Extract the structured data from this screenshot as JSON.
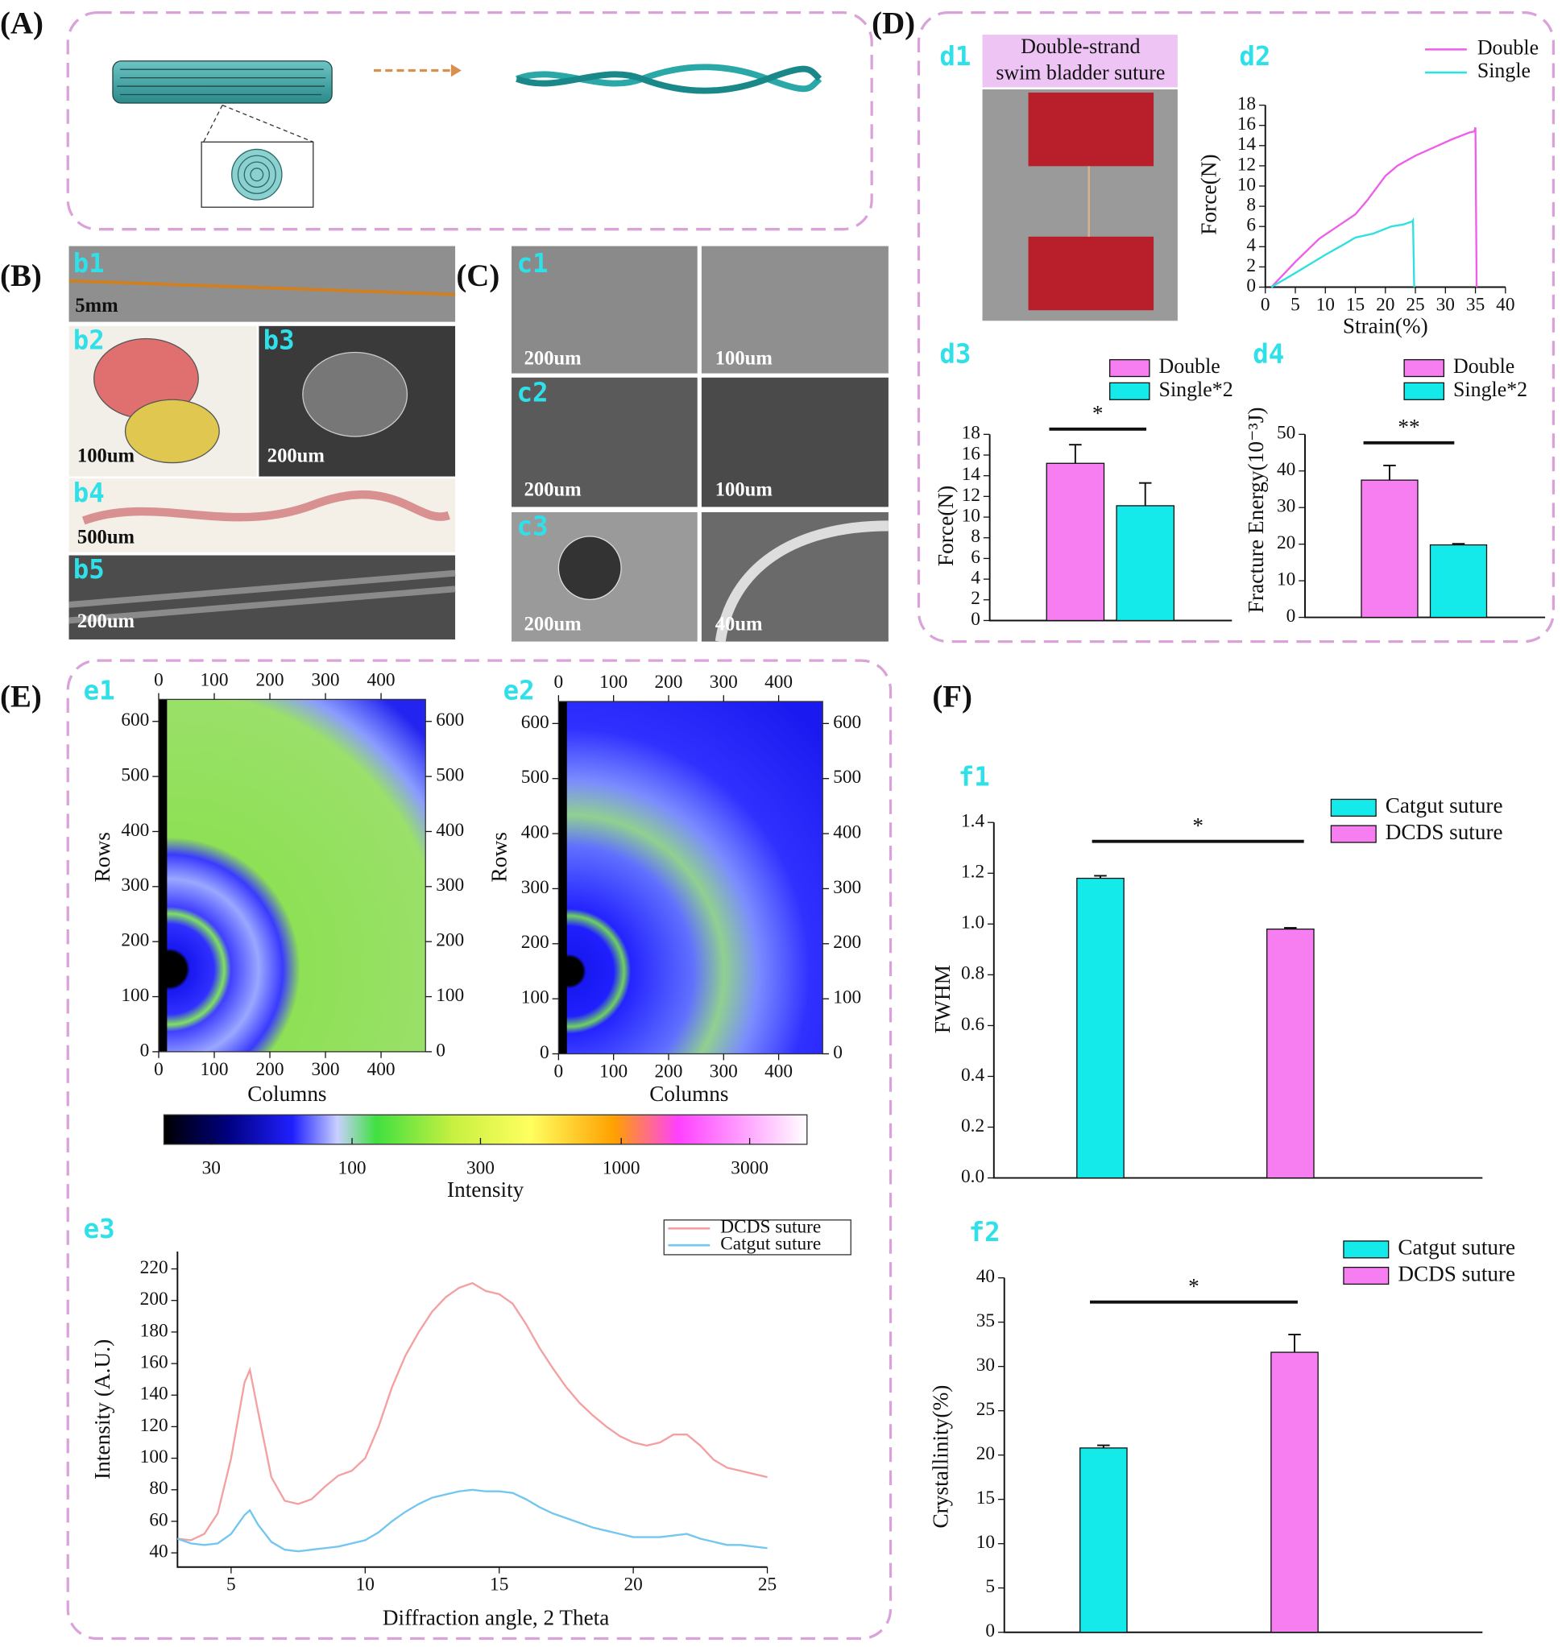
{
  "panels": [
    "(A)",
    "(B)",
    "(C)",
    "(D)",
    "(E)",
    "(F)"
  ],
  "image_labels": [
    "b1",
    "b2",
    "b3",
    "b4",
    "b5",
    "c1",
    "c2",
    "c3",
    "d1"
  ],
  "scale_bars": [
    "5mm",
    "100um",
    "200um",
    "500um",
    "200um",
    "200um",
    "100um",
    "200um",
    "100um",
    "200um",
    "40um"
  ],
  "d1_title": [
    "Double-strand",
    "swim bladder suture"
  ],
  "chart_data": [
    {
      "type": "line",
      "label": "d2",
      "xlabel": "Strain(%)",
      "ylabel": "Force(N)",
      "xlim": [
        0,
        40
      ],
      "xticks": [
        0,
        5,
        10,
        15,
        20,
        25,
        30,
        35,
        40
      ],
      "ylim": [
        0,
        18
      ],
      "yticks": [
        0,
        2,
        4,
        6,
        8,
        10,
        12,
        14,
        16,
        18
      ],
      "series": [
        {
          "name": "Double",
          "color": "#ee5ee8",
          "x": [
            1,
            5,
            9,
            12,
            15,
            17,
            20,
            22,
            25,
            28,
            31,
            34,
            34.8,
            35,
            35.2
          ],
          "values": [
            0,
            2.5,
            4.8,
            6,
            7.2,
            8.6,
            11,
            12,
            13,
            13.8,
            14.6,
            15.3,
            15.4,
            15.8,
            0
          ]
        },
        {
          "name": "Single",
          "color": "#2fe0e0",
          "x": [
            1,
            5,
            10,
            13,
            15,
            18,
            21,
            23,
            24.5,
            24.6,
            24.8
          ],
          "values": [
            0,
            1.4,
            3.2,
            4.2,
            4.9,
            5.3,
            6,
            6.2,
            6.5,
            6.6,
            0
          ]
        }
      ]
    },
    {
      "type": "bar",
      "label": "d3",
      "ylabel": "Force(N)",
      "annotation": "*",
      "ylim": [
        0,
        18
      ],
      "yticks": [
        0,
        2,
        4,
        6,
        8,
        10,
        12,
        14,
        16,
        18
      ],
      "series": [
        {
          "name": "Double",
          "color": "#f77ef0",
          "values": [
            15.2
          ],
          "errors": [
            1.8
          ]
        },
        {
          "name": "Single*2",
          "color": "#14eaea",
          "values": [
            11.1
          ],
          "errors": [
            2.2
          ]
        }
      ]
    },
    {
      "type": "bar",
      "label": "d4",
      "ylabel": "Fracture Energy(10⁻³J)",
      "annotation": "**",
      "ylim": [
        0,
        50
      ],
      "yticks": [
        0,
        10,
        20,
        30,
        40,
        50
      ],
      "series": [
        {
          "name": "Double",
          "color": "#f77ef0",
          "values": [
            37.5
          ],
          "errors": [
            4
          ]
        },
        {
          "name": "Single*2",
          "color": "#14eaea",
          "values": [
            19.8
          ],
          "errors": [
            0.3
          ]
        }
      ]
    },
    {
      "type": "heatmap",
      "label": "e1",
      "xlabel": "Columns",
      "ylabel": "Rows",
      "xlim": [
        0,
        480
      ],
      "xticks": [
        0,
        100,
        200,
        300,
        400
      ],
      "ylim": [
        0,
        640
      ],
      "yticks": [
        0,
        100,
        200,
        300,
        400,
        500,
        600
      ]
    },
    {
      "type": "heatmap",
      "label": "e2",
      "xlabel": "Columns",
      "ylabel": "Rows",
      "xlim": [
        0,
        480
      ],
      "xticks": [
        0,
        100,
        200,
        300,
        400
      ],
      "ylim": [
        0,
        640
      ],
      "yticks": [
        0,
        100,
        200,
        300,
        400,
        500,
        600
      ]
    },
    {
      "type": "colorbar",
      "xlabel": "Intensity",
      "log": true,
      "xlim": [
        20,
        4900
      ],
      "xticks": [
        30,
        100,
        300,
        1000,
        3000
      ]
    },
    {
      "type": "line",
      "label": "e3",
      "xlabel": "Diffraction angle, 2 Theta",
      "ylabel": "Intensity (A.U.)",
      "xlim": [
        3,
        25
      ],
      "xticks": [
        5,
        10,
        15,
        20,
        25
      ],
      "ylim": [
        31,
        231
      ],
      "yticks": [
        40,
        60,
        80,
        100,
        120,
        140,
        160,
        180,
        200,
        220
      ],
      "x": [
        3,
        3.5,
        4,
        4.5,
        5,
        5.5,
        5.7,
        6,
        6.5,
        7,
        7.5,
        8,
        8.5,
        9,
        9.5,
        10,
        10.5,
        11,
        11.5,
        12,
        12.5,
        13,
        13.5,
        14,
        14.5,
        15,
        15.5,
        16,
        16.5,
        17,
        17.5,
        18,
        18.5,
        19,
        19.5,
        20,
        20.5,
        21,
        21.5,
        22,
        22.5,
        23,
        23.5,
        24,
        24.5,
        25
      ],
      "series": [
        {
          "name": "DCDS suture",
          "color": "#f4a0a0",
          "values": [
            49,
            48,
            52,
            65,
            100,
            148,
            156,
            130,
            88,
            73,
            71,
            74,
            82,
            89,
            92,
            100,
            120,
            145,
            165,
            180,
            193,
            202,
            208,
            211,
            206,
            204,
            198,
            185,
            170,
            157,
            145,
            135,
            127,
            120,
            114,
            110,
            108,
            110,
            115,
            115,
            108,
            99,
            94,
            92,
            90,
            88
          ]
        },
        {
          "name": "Catgut suture",
          "color": "#72c6ef",
          "values": [
            49,
            46,
            45,
            46,
            52,
            64,
            67,
            58,
            47,
            42,
            41,
            42,
            43,
            44,
            46,
            48,
            53,
            60,
            66,
            71,
            75,
            77,
            79,
            80,
            79,
            79,
            78,
            74,
            69,
            65,
            62,
            59,
            56,
            54,
            52,
            50,
            50,
            50,
            51,
            52,
            49,
            47,
            45,
            45,
            44,
            43
          ]
        }
      ]
    },
    {
      "type": "bar",
      "label": "f1",
      "ylabel": "FWHM",
      "annotation": "*",
      "ylim": [
        0,
        1.4
      ],
      "yticks": [
        {
          "value": 0,
          "label": "0.0"
        },
        0.2,
        0.4,
        0.6,
        0.8,
        {
          "value": 1,
          "label": "1.0"
        },
        1.2,
        1.4
      ],
      "series": [
        {
          "name": "Catgut suture",
          "color": "#14eaea",
          "values": [
            1.18
          ],
          "errors": [
            0.01
          ]
        },
        {
          "name": "DCDS suture",
          "color": "#f77ef0",
          "values": [
            0.98
          ],
          "errors": [
            0.005
          ]
        }
      ]
    },
    {
      "type": "bar",
      "label": "f2",
      "ylabel": "Crystallinity(%)",
      "annotation": "*",
      "ylim": [
        0,
        40
      ],
      "yticks": [
        0,
        5,
        10,
        15,
        20,
        25,
        30,
        35,
        40
      ],
      "series": [
        {
          "name": "Catgut suture",
          "color": "#14eaea",
          "values": [
            20.8
          ],
          "errors": [
            0.3
          ]
        },
        {
          "name": "DCDS suture",
          "color": "#f77ef0",
          "values": [
            31.6
          ],
          "errors": [
            2
          ]
        }
      ]
    }
  ]
}
